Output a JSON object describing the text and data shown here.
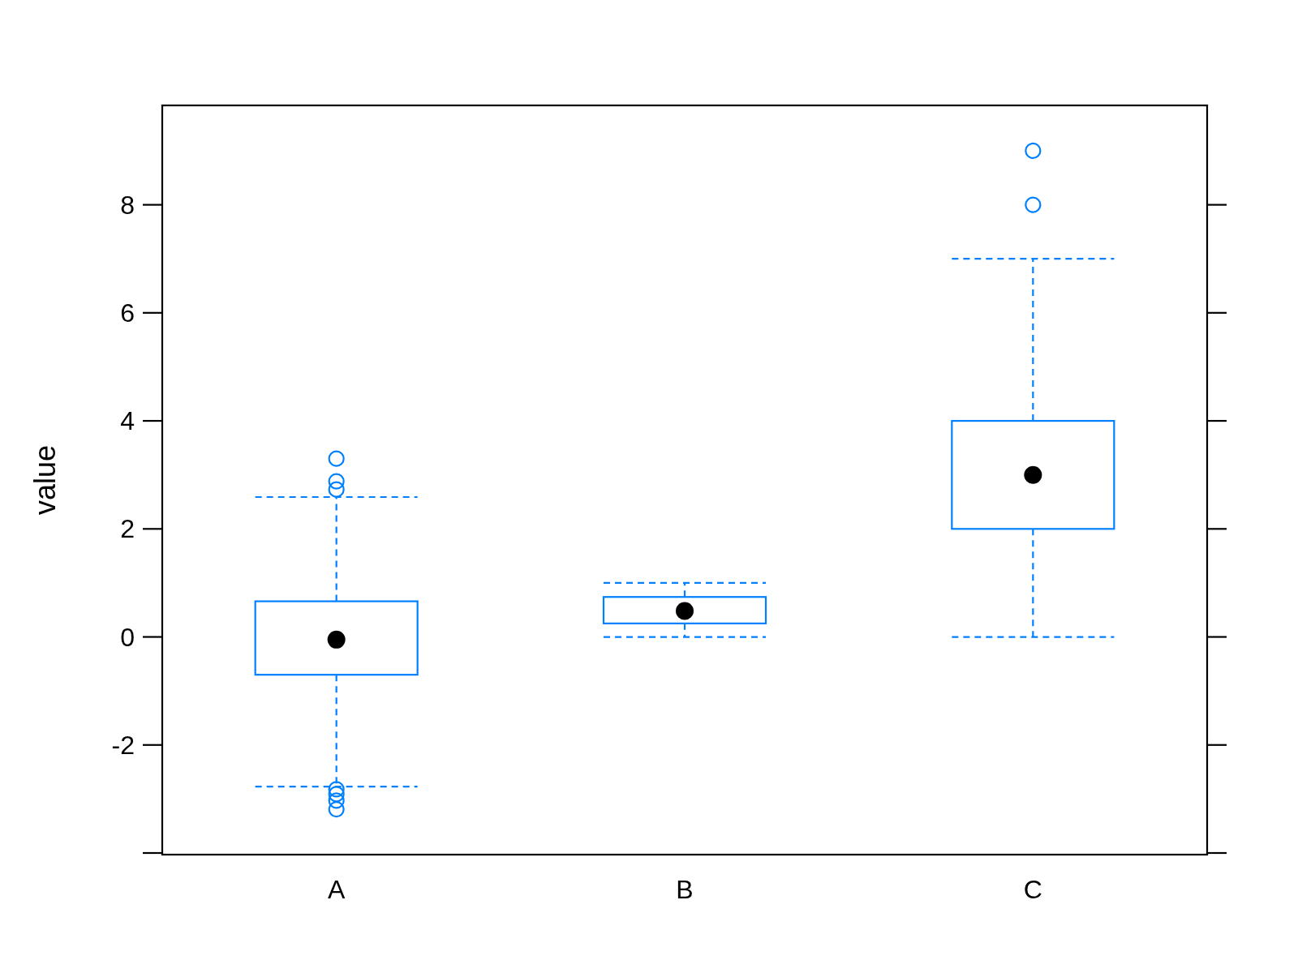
{
  "chart_data": {
    "type": "box",
    "ylabel": "value",
    "categories": [
      "A",
      "B",
      "C"
    ],
    "color": "#0080ff",
    "ylim": [
      -4.03,
      9.84
    ],
    "yticks": [
      {
        "value": -4,
        "label": null
      },
      -2,
      0,
      2,
      4,
      6,
      8
    ],
    "line_style": "dashed",
    "grid": false,
    "boxes": [
      {
        "low": -2.77,
        "q1": -0.7,
        "median": -0.05,
        "q3": 0.66,
        "high": 2.59,
        "outliers": [
          3.3,
          2.88,
          2.73,
          -2.82,
          -2.91,
          -3.03,
          -3.19
        ]
      },
      {
        "low": 0,
        "q1": 0.25,
        "median": 0.48,
        "q3": 0.74,
        "high": 1.0
      },
      {
        "low": 0,
        "q1": 2,
        "median": 3,
        "q3": 4,
        "high": 7,
        "outliers": [
          8,
          9
        ]
      }
    ]
  }
}
